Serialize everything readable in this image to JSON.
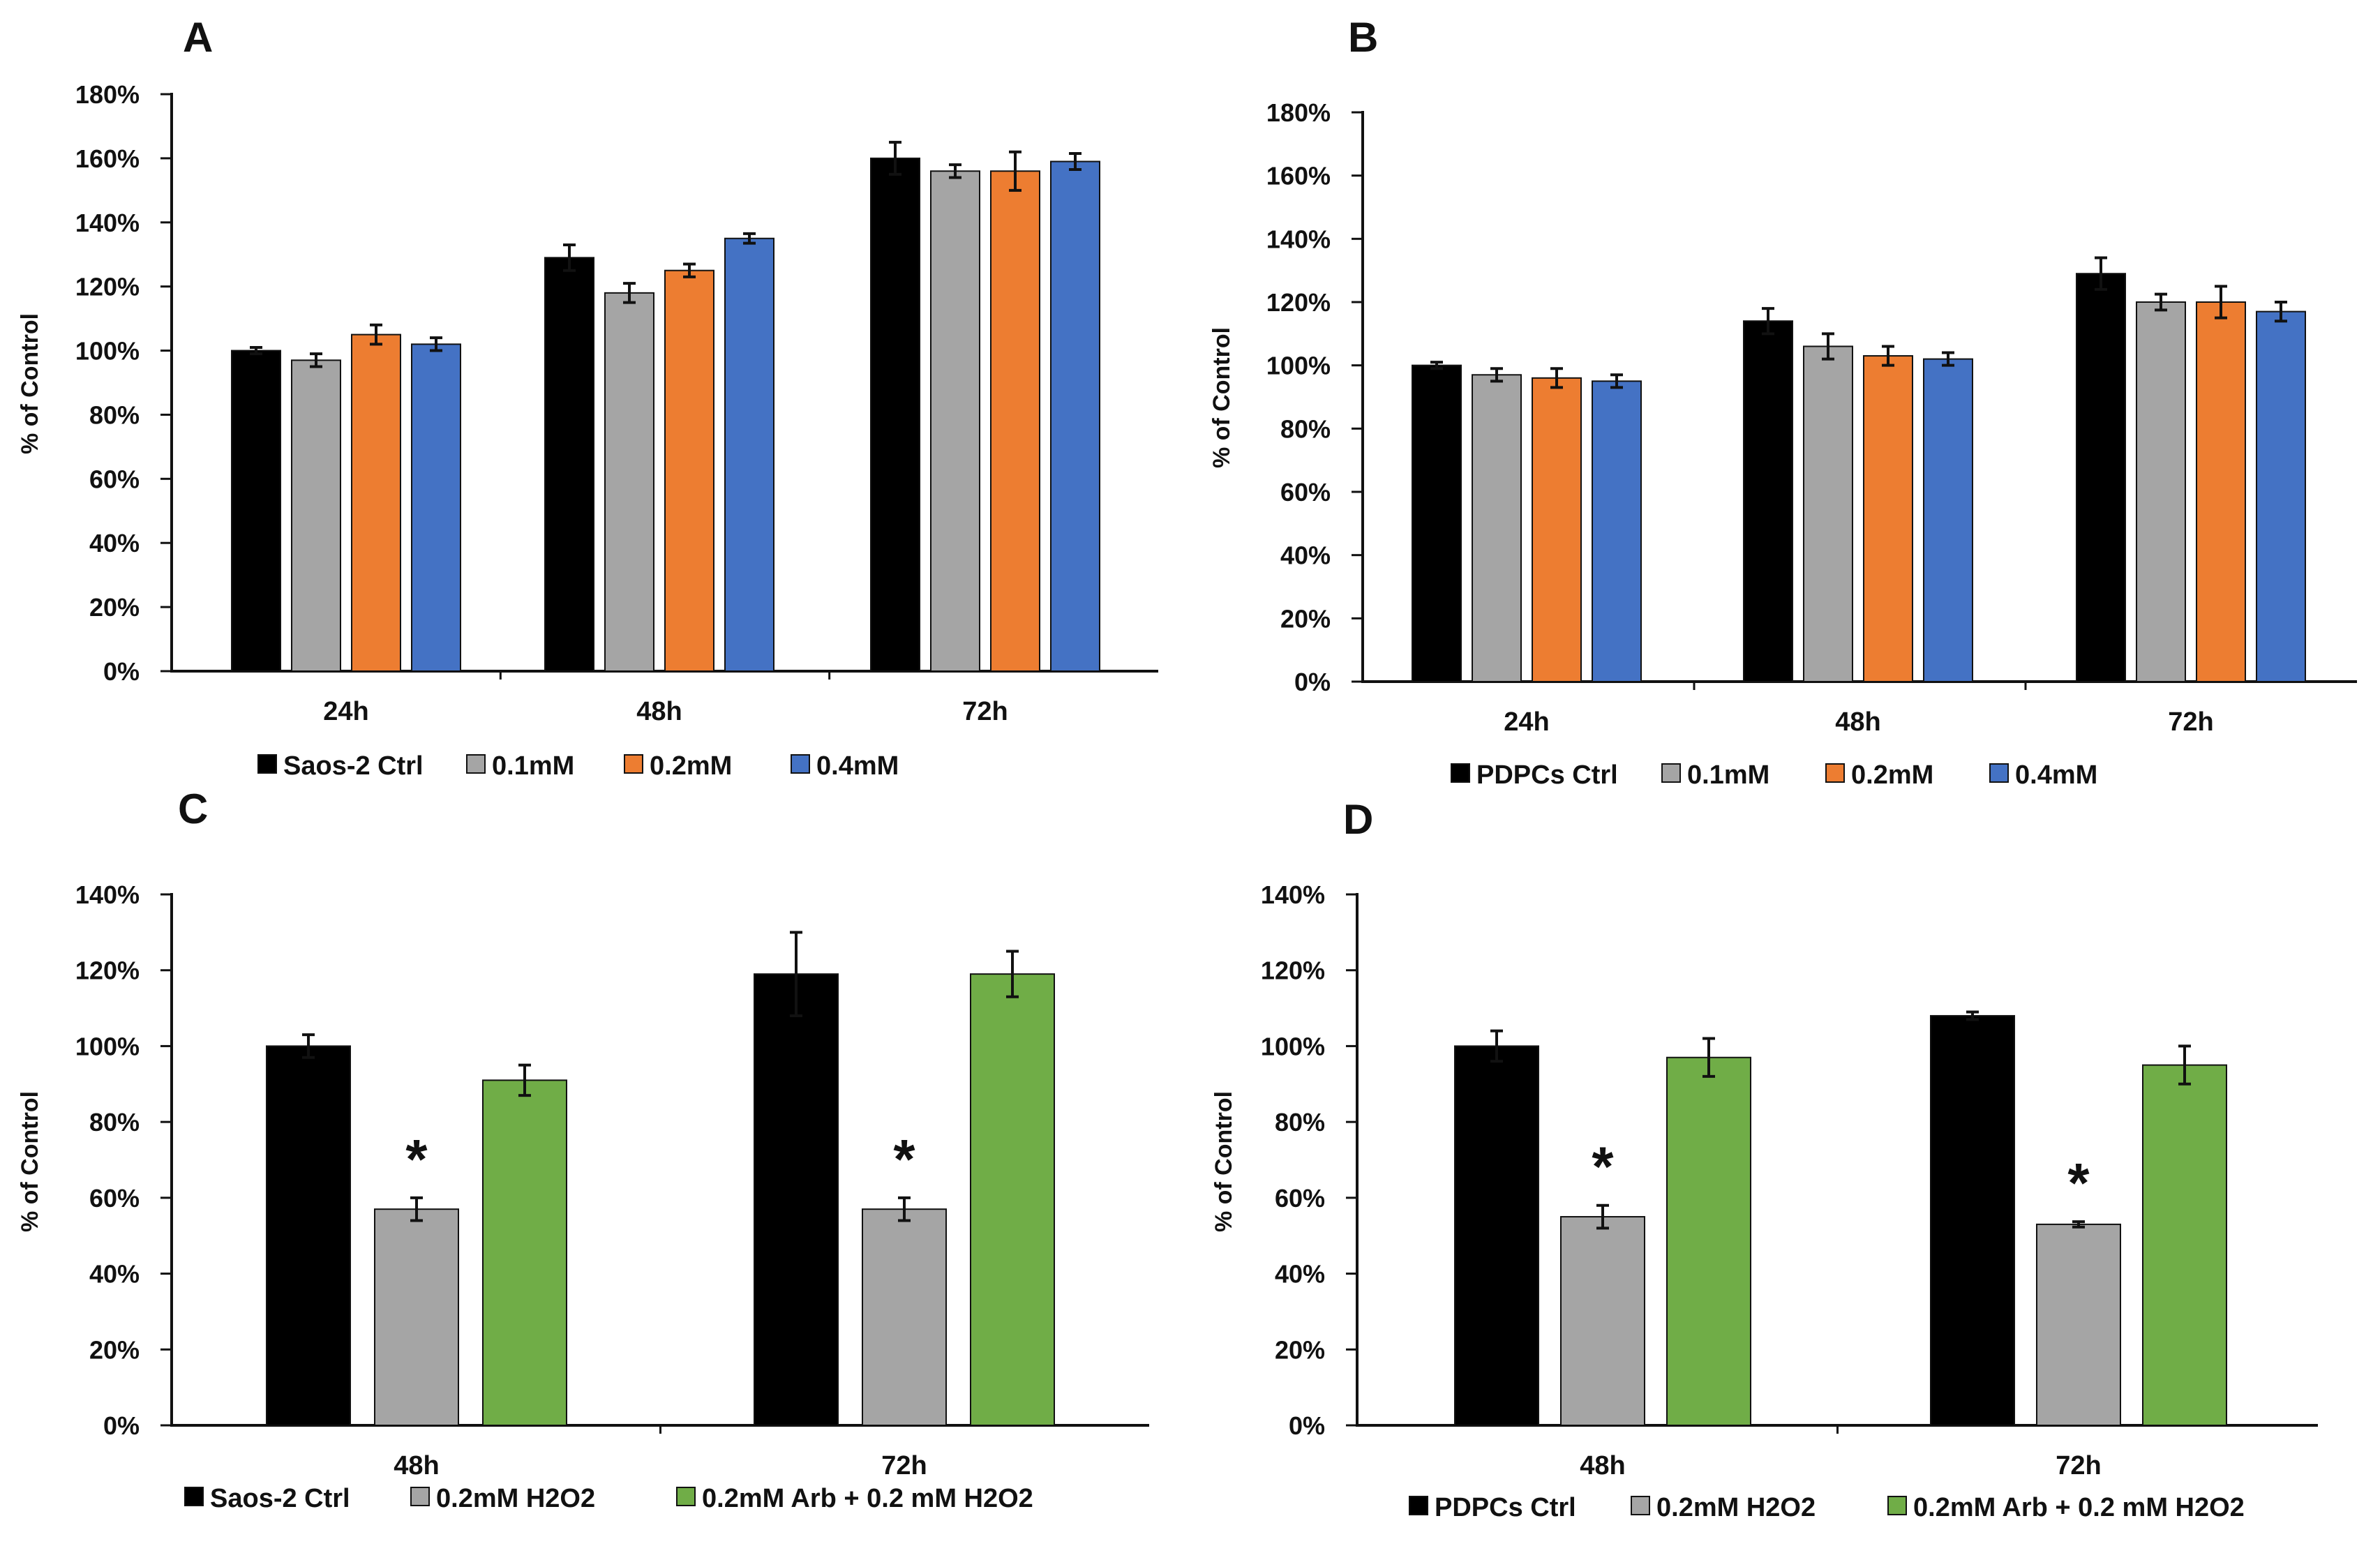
{
  "chart_data": [
    {
      "panel": "A",
      "type": "bar",
      "categories": [
        "24h",
        "48h",
        "72h"
      ],
      "ylabel": "% of Control",
      "ylim": [
        0,
        180
      ],
      "yticks": [
        "0%",
        "20%",
        "40%",
        "60%",
        "80%",
        "100%",
        "120%",
        "140%",
        "160%",
        "180%"
      ],
      "grid": false,
      "legend_position": "bottom",
      "series": [
        {
          "name": "Saos-2 Ctrl",
          "color": "#000000",
          "values": [
            100,
            129,
            160
          ],
          "errors": [
            1,
            4,
            5
          ]
        },
        {
          "name": "0.1mM",
          "color": "#a5a5a5",
          "values": [
            97,
            118,
            156
          ],
          "errors": [
            2,
            3,
            2
          ]
        },
        {
          "name": "0.2mM",
          "color": "#ed7d31",
          "values": [
            105,
            125,
            156
          ],
          "errors": [
            3,
            2,
            6
          ]
        },
        {
          "name": "0.4mM",
          "color": "#4472c4",
          "values": [
            102,
            135,
            159
          ],
          "errors": [
            2,
            1.5,
            2.5
          ]
        }
      ]
    },
    {
      "panel": "B",
      "type": "bar",
      "categories": [
        "24h",
        "48h",
        "72h"
      ],
      "ylabel": "% of Control",
      "ylim": [
        0,
        180
      ],
      "yticks": [
        "0%",
        "20%",
        "40%",
        "60%",
        "80%",
        "100%",
        "120%",
        "140%",
        "160%",
        "180%"
      ],
      "grid": false,
      "legend_position": "bottom",
      "series": [
        {
          "name": "PDPCs Ctrl",
          "color": "#000000",
          "values": [
            100,
            114,
            129
          ],
          "errors": [
            1,
            4,
            5
          ]
        },
        {
          "name": "0.1mM",
          "color": "#a5a5a5",
          "values": [
            97,
            106,
            120
          ],
          "errors": [
            2,
            4,
            2.5
          ]
        },
        {
          "name": "0.2mM",
          "color": "#ed7d31",
          "values": [
            96,
            103,
            120
          ],
          "errors": [
            3,
            3,
            5
          ]
        },
        {
          "name": "0.4mM",
          "color": "#4472c4",
          "values": [
            95,
            102,
            117
          ],
          "errors": [
            2,
            2,
            3
          ]
        }
      ]
    },
    {
      "panel": "C",
      "type": "bar",
      "categories": [
        "48h",
        "72h"
      ],
      "ylabel": "% of Control",
      "ylim": [
        0,
        140
      ],
      "yticks": [
        "0%",
        "20%",
        "40%",
        "60%",
        "80%",
        "100%",
        "120%",
        "140%"
      ],
      "grid": false,
      "legend_position": "bottom",
      "annotations": [
        "*"
      ],
      "significant_series": "0.2mM H2O2",
      "series": [
        {
          "name": "Saos-2 Ctrl",
          "color": "#000000",
          "values": [
            100,
            119
          ],
          "errors": [
            3,
            11
          ]
        },
        {
          "name": "0.2mM H2O2",
          "color": "#a5a5a5",
          "values": [
            57,
            57
          ],
          "errors": [
            3,
            3
          ]
        },
        {
          "name": "0.2mM Arb + 0.2 mM H2O2",
          "color": "#70ad47",
          "values": [
            91,
            119
          ],
          "errors": [
            4,
            6
          ]
        }
      ]
    },
    {
      "panel": "D",
      "type": "bar",
      "categories": [
        "48h",
        "72h"
      ],
      "ylabel": "% of Control",
      "ylim": [
        0,
        140
      ],
      "yticks": [
        "0%",
        "20%",
        "40%",
        "60%",
        "80%",
        "100%",
        "120%",
        "140%"
      ],
      "grid": false,
      "legend_position": "bottom",
      "annotations": [
        "*"
      ],
      "significant_series": "0.2mM H2O2",
      "series": [
        {
          "name": "PDPCs Ctrl",
          "color": "#000000",
          "values": [
            100,
            108
          ],
          "errors": [
            4,
            1
          ]
        },
        {
          "name": "0.2mM H2O2",
          "color": "#a5a5a5",
          "values": [
            55,
            53
          ],
          "errors": [
            3,
            0.7
          ]
        },
        {
          "name": "0.2mM Arb + 0.2 mM H2O2",
          "color": "#70ad47",
          "values": [
            97,
            95
          ],
          "errors": [
            5,
            5
          ]
        }
      ]
    }
  ]
}
